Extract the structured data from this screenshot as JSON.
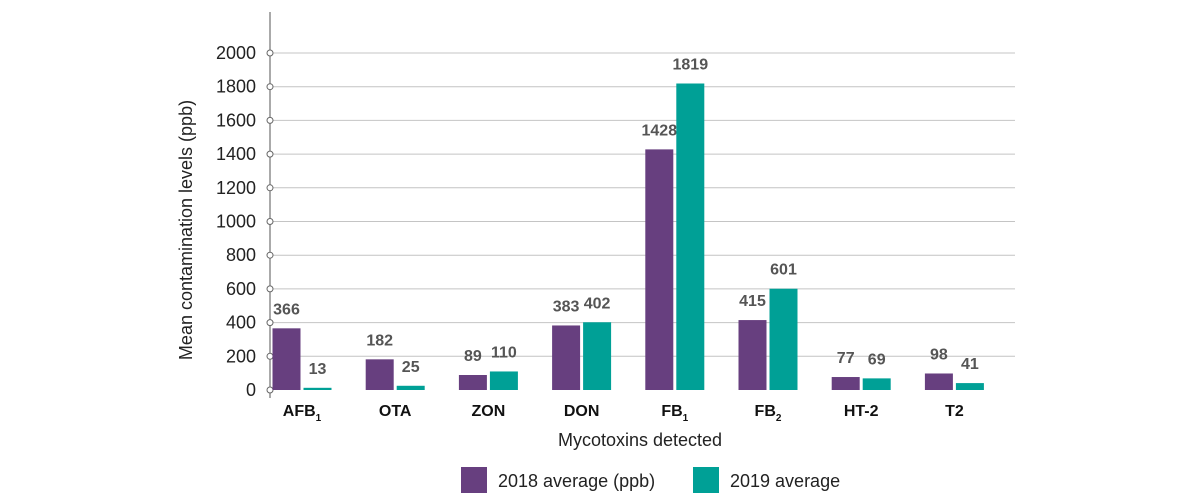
{
  "chart_data": {
    "type": "bar",
    "categories": [
      {
        "label": "AFB",
        "sub": "1"
      },
      {
        "label": "OTA",
        "sub": ""
      },
      {
        "label": "ZON",
        "sub": ""
      },
      {
        "label": "DON",
        "sub": ""
      },
      {
        "label": "FB",
        "sub": "1"
      },
      {
        "label": "FB",
        "sub": "2"
      },
      {
        "label": "HT-2",
        "sub": ""
      },
      {
        "label": "T2",
        "sub": ""
      }
    ],
    "series": [
      {
        "name": "2018 average (ppb)",
        "color": "#673f7f",
        "values": [
          366,
          182,
          89,
          383,
          1428,
          415,
          77,
          98
        ],
        "labels": [
          "366",
          "182",
          "89",
          "383",
          "1428",
          "415",
          "77",
          "98"
        ]
      },
      {
        "name": "2019 average",
        "color": "#00a096",
        "values": [
          13,
          25,
          110,
          402,
          1819,
          601,
          69,
          41
        ],
        "labels": [
          "13",
          "25",
          "110",
          "402",
          "1819",
          "601",
          "69",
          "41"
        ]
      }
    ],
    "ylabel": "Mean contamination levels (ppb)",
    "xlabel": "Mycotoxins detected",
    "ylim": [
      0,
      2000
    ],
    "yticks": [
      0,
      200,
      400,
      600,
      800,
      1000,
      1200,
      1400,
      1600,
      1800,
      2000
    ],
    "grid": true,
    "legend_position": "bottom"
  }
}
